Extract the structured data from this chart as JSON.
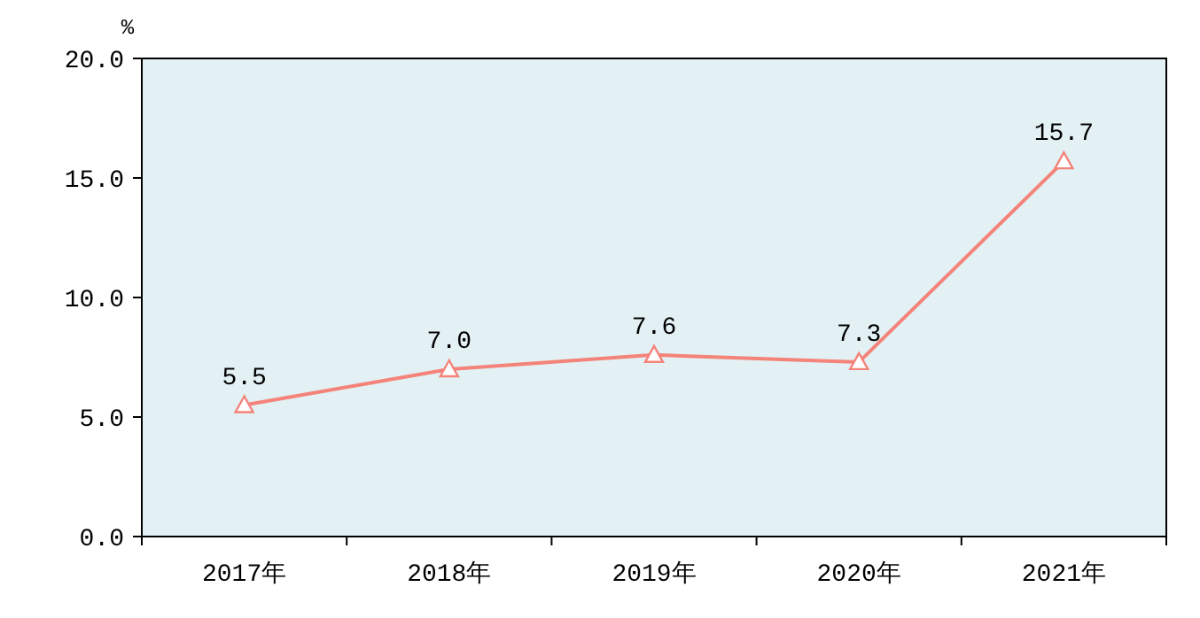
{
  "chart_data": {
    "type": "line",
    "ylabel": "%",
    "categories": [
      "2017年",
      "2018年",
      "2019年",
      "2020年",
      "2021年"
    ],
    "series": [
      {
        "color": "#f4837a",
        "values": [
          5.5,
          7.0,
          7.6,
          7.3,
          15.7
        ],
        "value_labels": [
          "5.5",
          "7.0",
          "7.6",
          "7.3",
          "15.7"
        ]
      }
    ],
    "ylim": [
      0,
      20
    ],
    "yticks": [
      {
        "value": 0,
        "label": "0.0"
      },
      {
        "value": 5,
        "label": "5.0"
      },
      {
        "value": 10,
        "label": "10.0"
      },
      {
        "value": 15,
        "label": "15.0"
      },
      {
        "value": 20,
        "label": "20.0"
      }
    ],
    "marker": "triangle",
    "line_style": "solid",
    "grid": false
  }
}
